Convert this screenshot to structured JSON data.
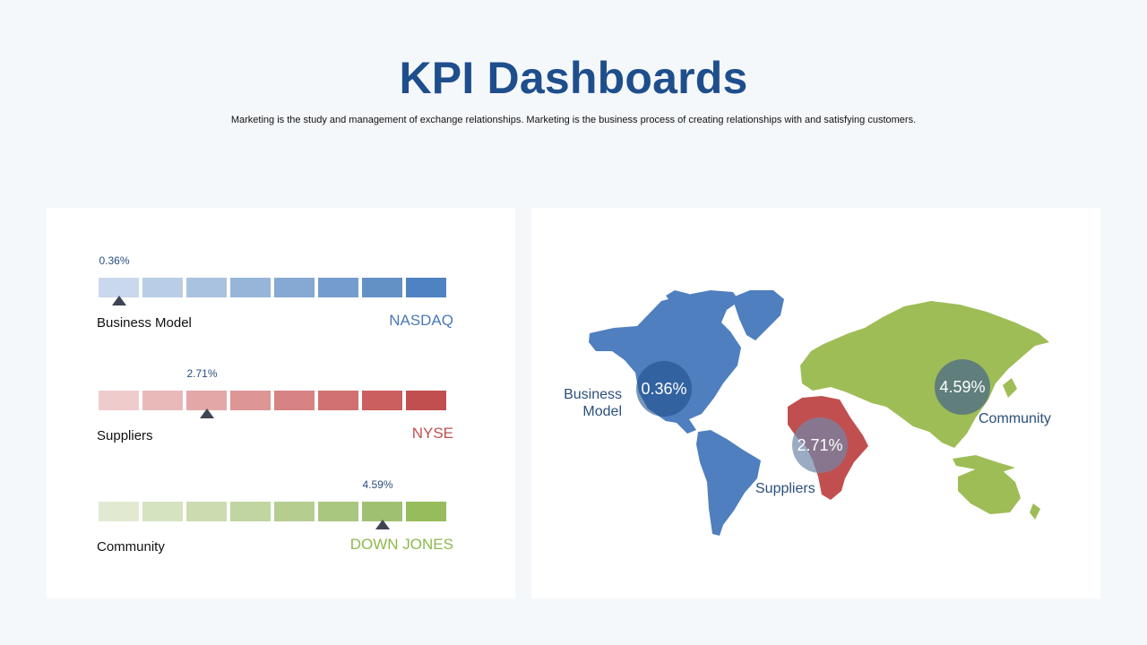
{
  "header": {
    "title": "KPI Dashboards",
    "subtitle": "Marketing is the study and management of exchange relationships. Marketing is the business process of creating relationships with and satisfying customers."
  },
  "chart_data": [
    {
      "type": "bar",
      "title": "",
      "rows": [
        {
          "name": "Business Model",
          "market": "NASDAQ",
          "value_label": "0.36%",
          "value": 0.36,
          "marker_segment": 0,
          "segment_colors": [
            "#c9d8ec",
            "#b9cde6",
            "#a9c2e0",
            "#97b5d9",
            "#86a9d3",
            "#749dcd",
            "#6391c6",
            "#4f82c0"
          ],
          "market_color": "#4a79b8"
        },
        {
          "name": "Suppliers",
          "market": "NYSE",
          "value_label": "2.71%",
          "value": 2.71,
          "marker_segment": 2,
          "segment_colors": [
            "#efcbcc",
            "#e9b9ba",
            "#e3a7a8",
            "#dd9596",
            "#d78384",
            "#d17172",
            "#cb5f60",
            "#c24f4f"
          ],
          "market_color": "#c24f4f"
        },
        {
          "name": "Community",
          "market": "DOWN JONES",
          "value_label": "4.59%",
          "value": 4.59,
          "marker_segment": 6,
          "segment_colors": [
            "#e1ead0",
            "#d6e3c0",
            "#cbdcb0",
            "#c0d5a0",
            "#b5ce90",
            "#aac780",
            "#9fc070",
            "#97bc5c"
          ],
          "market_color": "#8fb84e"
        }
      ]
    },
    {
      "type": "map",
      "regions": [
        {
          "name": "Business Model",
          "value_label": "0.36%",
          "value": 0.36,
          "color": "#4f7fbf"
        },
        {
          "name": "Suppliers",
          "value_label": "2.71%",
          "value": 2.71,
          "color": "#c24f4f"
        },
        {
          "name": "Community",
          "value_label": "4.59%",
          "value": 4.59,
          "color": "#9ebd56"
        }
      ]
    }
  ]
}
